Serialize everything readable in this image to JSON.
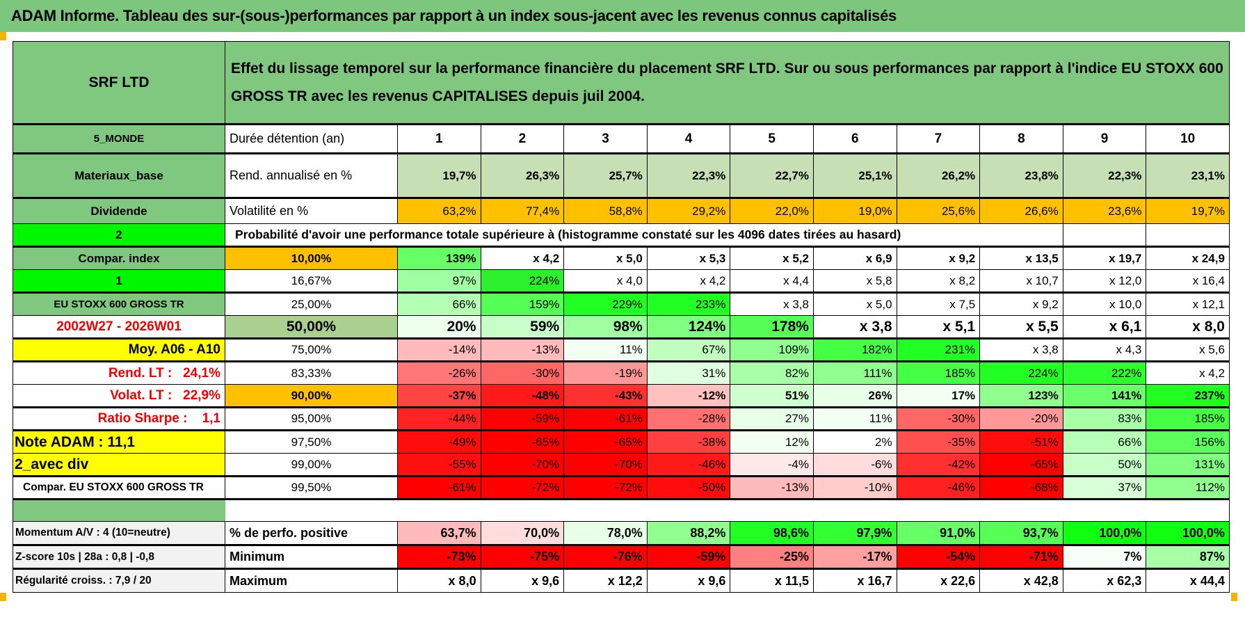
{
  "title": "ADAM Informe. Tableau des sur-(sous-)performances par rapport à un index sous-jacent avec les revenus connus capitalisés",
  "header": {
    "col_a": "SRF LTD",
    "description": "Effet du lissage temporel sur la performance financière du placement SRF LTD. Sur ou sous performances par rapport à l'indice EU STOXX 600 GROSS TR avec les revenus CAPITALISES depuis juil 2004."
  },
  "colors": {
    "header_green": "#80C880",
    "bright_green": "#00F700",
    "highlight_yellow": "#FFFF00",
    "orange": "#FFC000",
    "return_green": "#C6DFB4",
    "label_red": "#F00000"
  },
  "hold_row": {
    "col_a": "5_MONDE",
    "label": "Durée détention (an)",
    "years": [
      "1",
      "2",
      "3",
      "4",
      "5",
      "6",
      "7",
      "8",
      "9",
      "10"
    ]
  },
  "return_row": {
    "col_a": "Materiaux_base",
    "label": "Rend. annualisé en %",
    "bg": "#C6DFB4",
    "values": [
      "19,7%",
      "26,3%",
      "25,7%",
      "22,3%",
      "22,7%",
      "25,1%",
      "26,2%",
      "23,8%",
      "22,3%",
      "23,1%"
    ]
  },
  "vol_row": {
    "col_a": "Dividende",
    "label": "Volatilité en %",
    "bg": "#FFC000",
    "values": [
      "63,2%",
      "77,4%",
      "58,8%",
      "29,2%",
      "22,0%",
      "19,0%",
      "25,6%",
      "26,6%",
      "23,6%",
      "19,7%"
    ]
  },
  "prob_row": {
    "col_a": "2",
    "label": "Probabilité d'avoir une performance totale supérieure à (histogramme constaté sur les 4096 dates tirées au hasard)"
  },
  "percentile_rows": [
    {
      "col_a": "Compar. index",
      "threshold": "10,00%",
      "threshold_bg": "#FFC000",
      "cells": [
        [
          "139%",
          "#66FF66"
        ],
        [
          "x 4,2",
          "#FFFFFF"
        ],
        [
          "x 5,0",
          "#FFFFFF"
        ],
        [
          "x 5,3",
          "#FFFFFF"
        ],
        [
          "x 5,2",
          "#FFFFFF"
        ],
        [
          "x 6,9",
          "#FFFFFF"
        ],
        [
          "x 9,2",
          "#FFFFFF"
        ],
        [
          "x 13,5",
          "#FFFFFF"
        ],
        [
          "x 19,7",
          "#FFFFFF"
        ],
        [
          "x 24,9",
          "#FFFFFF"
        ]
      ]
    },
    {
      "col_a": "1",
      "threshold": "16,67%",
      "threshold_bg": "#FFFFFF",
      "cells": [
        [
          "97%",
          "#A0FFA0"
        ],
        [
          "224%",
          "#2CF02C"
        ],
        [
          "x 4,0",
          "#FFFFFF"
        ],
        [
          "x 4,2",
          "#FFFFFF"
        ],
        [
          "x 4,4",
          "#FFFFFF"
        ],
        [
          "x 5,8",
          "#FFFFFF"
        ],
        [
          "x 8,2",
          "#FFFFFF"
        ],
        [
          "x 10,7",
          "#FFFFFF"
        ],
        [
          "x 12,0",
          "#FFFFFF"
        ],
        [
          "x 16,4",
          "#FFFFFF"
        ]
      ]
    },
    {
      "col_a": "EU STOXX 600 GROSS TR",
      "threshold": "25,00%",
      "threshold_bg": "#FFFFFF",
      "cells": [
        [
          "66%",
          "#B4FFB4"
        ],
        [
          "159%",
          "#55FF55"
        ],
        [
          "229%",
          "#22FF22"
        ],
        [
          "233%",
          "#22FF22"
        ],
        [
          "x 3,8",
          "#FFFFFF"
        ],
        [
          "x 5,0",
          "#FFFFFF"
        ],
        [
          "x 7,5",
          "#FFFFFF"
        ],
        [
          "x 9,2",
          "#FFFFFF"
        ],
        [
          "x 10,0",
          "#FFFFFF"
        ],
        [
          "x 12,1",
          "#FFFFFF"
        ]
      ]
    },
    {
      "col_a": "2002W27 - 2026W01",
      "threshold": "50,00%",
      "threshold_bg": "#A9D08E",
      "cells": [
        [
          "20%",
          "#EEFFEE"
        ],
        [
          "59%",
          "#C8FFC8"
        ],
        [
          "98%",
          "#A0FFA0"
        ],
        [
          "124%",
          "#80FF80"
        ],
        [
          "178%",
          "#55FF55"
        ],
        [
          "x 3,8",
          "#FFFFFF"
        ],
        [
          "x 5,1",
          "#FFFFFF"
        ],
        [
          "x 5,5",
          "#FFFFFF"
        ],
        [
          "x 6,1",
          "#FFFFFF"
        ],
        [
          "x 8,0",
          "#FFFFFF"
        ]
      ]
    },
    {
      "col_a": "Moy. A06 - A10",
      "threshold": "75,00%",
      "threshold_bg": "#FFFFFF",
      "cells": [
        [
          "-14%",
          "#FFBBBB"
        ],
        [
          "-13%",
          "#FFBBBB"
        ],
        [
          "11%",
          "#F2FFF2"
        ],
        [
          "67%",
          "#C0FFC0"
        ],
        [
          "109%",
          "#90FF90"
        ],
        [
          "182%",
          "#44FF44"
        ],
        [
          "231%",
          "#22FF22"
        ],
        [
          "x 3,8",
          "#FFFFFF"
        ],
        [
          "x 4,3",
          "#FFFFFF"
        ],
        [
          "x 5,6",
          "#FFFFFF"
        ]
      ]
    },
    {
      "col_a": "Rend. LT :   24,1%",
      "threshold": "83,33%",
      "threshold_bg": "#FFFFFF",
      "cells": [
        [
          "-26%",
          "#FF7777"
        ],
        [
          "-30%",
          "#FF6666"
        ],
        [
          "-19%",
          "#FF9999"
        ],
        [
          "31%",
          "#E0FFE0"
        ],
        [
          "82%",
          "#A8FFA8"
        ],
        [
          "111%",
          "#90FF90"
        ],
        [
          "185%",
          "#44FF44"
        ],
        [
          "224%",
          "#22FF22"
        ],
        [
          "222%",
          "#2EFF2E"
        ],
        [
          "x 4,2",
          "#FFFFFF"
        ]
      ]
    },
    {
      "col_a": "Volat. LT :   22,9%",
      "threshold": "90,00%",
      "threshold_bg": "#FFC000",
      "cells": [
        [
          "-37%",
          "#FF4444"
        ],
        [
          "-48%",
          "#FF1A1A"
        ],
        [
          "-43%",
          "#FF3030"
        ],
        [
          "-12%",
          "#FFC0C0"
        ],
        [
          "51%",
          "#D0FFD0"
        ],
        [
          "26%",
          "#E8FFE8"
        ],
        [
          "17%",
          "#F2FFF2"
        ],
        [
          "123%",
          "#90FF90"
        ],
        [
          "141%",
          "#6CFF6C"
        ],
        [
          "237%",
          "#22FF22"
        ]
      ]
    },
    {
      "col_a": "Ratio Sharpe :    1,1",
      "threshold": "95,00%",
      "threshold_bg": "#FFFFFF",
      "cells": [
        [
          "-44%",
          "#FF2222"
        ],
        [
          "-59%",
          "#FF0000"
        ],
        [
          "-61%",
          "#FF0000"
        ],
        [
          "-28%",
          "#FF7070"
        ],
        [
          "27%",
          "#E8FFE8"
        ],
        [
          "11%",
          "#F4FFF4"
        ],
        [
          "-30%",
          "#FF6666"
        ],
        [
          "-20%",
          "#FF9999"
        ],
        [
          "83%",
          "#A8FFA8"
        ],
        [
          "185%",
          "#44FF44"
        ]
      ]
    },
    {
      "col_a": "Note ADAM : 11,1",
      "threshold": "97,50%",
      "threshold_bg": "#FFFFFF",
      "cells": [
        [
          "-49%",
          "#FF0D0D"
        ],
        [
          "-65%",
          "#FF0000"
        ],
        [
          "-65%",
          "#FF0000"
        ],
        [
          "-38%",
          "#FF4040"
        ],
        [
          "12%",
          "#F4FFF4"
        ],
        [
          "2%",
          "#FFFFFF"
        ],
        [
          "-35%",
          "#FF5050"
        ],
        [
          "-51%",
          "#FF0D0D"
        ],
        [
          "66%",
          "#B8FFB8"
        ],
        [
          "156%",
          "#5CFF5C"
        ]
      ]
    },
    {
      "col_a": "2_avec div",
      "threshold": "99,00%",
      "threshold_bg": "#FFFFFF",
      "cells": [
        [
          "-55%",
          "#FF1010"
        ],
        [
          "-70%",
          "#FF0000"
        ],
        [
          "-70%",
          "#FF0000"
        ],
        [
          "-46%",
          "#FF1A1A"
        ],
        [
          "-4%",
          "#FFE8E8"
        ],
        [
          "-6%",
          "#FFDDDD"
        ],
        [
          "-42%",
          "#FF3030"
        ],
        [
          "-65%",
          "#FF0000"
        ],
        [
          "50%",
          "#C8FFC8"
        ],
        [
          "131%",
          "#80FF80"
        ]
      ]
    },
    {
      "col_a": "Compar. EU STOXX 600 GROSS TR",
      "threshold": "99,50%",
      "threshold_bg": "#FFFFFF",
      "cells": [
        [
          "-61%",
          "#FF0000"
        ],
        [
          "-72%",
          "#FF0000"
        ],
        [
          "-72%",
          "#FF0000"
        ],
        [
          "-50%",
          "#FF0D0D"
        ],
        [
          "-13%",
          "#FFBBBB"
        ],
        [
          "-10%",
          "#FFCCCC"
        ],
        [
          "-46%",
          "#FF2020"
        ],
        [
          "-68%",
          "#FF0000"
        ],
        [
          "37%",
          "#D8FFD8"
        ],
        [
          "112%",
          "#90FF90"
        ]
      ]
    }
  ],
  "stats_rows": [
    {
      "col_a": "Momentum A/V : 4 (10=neutre)",
      "label": "% de perfo. positive",
      "cells": [
        [
          "63,7%",
          "#FFBBBB"
        ],
        [
          "70,0%",
          "#FFDDDD"
        ],
        [
          "78,0%",
          "#E8FFE8"
        ],
        [
          "88,2%",
          "#90FF90"
        ],
        [
          "98,6%",
          "#22FF22"
        ],
        [
          "97,9%",
          "#33FF33"
        ],
        [
          "91,0%",
          "#66FF66"
        ],
        [
          "93,7%",
          "#55FF55"
        ],
        [
          "100,0%",
          "#11FF11"
        ],
        [
          "100,0%",
          "#11FF11"
        ]
      ]
    },
    {
      "col_a": "Z-score 10s | 28a : 0,8 | -0,8",
      "label": "Minimum",
      "cells": [
        [
          "-73%",
          "#FF0000"
        ],
        [
          "-75%",
          "#FF0000"
        ],
        [
          "-76%",
          "#FF0000"
        ],
        [
          "-59%",
          "#FF0000"
        ],
        [
          "-25%",
          "#FF8080"
        ],
        [
          "-17%",
          "#FFA0A0"
        ],
        [
          "-54%",
          "#FF0000"
        ],
        [
          "-71%",
          "#FF0000"
        ],
        [
          "7%",
          "#F8FFF8"
        ],
        [
          "87%",
          "#A8FFA8"
        ]
      ]
    },
    {
      "col_a": "Régularité croiss. : 7,9 / 20",
      "label": "Maximum",
      "cells": [
        [
          "x 8,0",
          "#FFFFFF"
        ],
        [
          "x 9,6",
          "#FFFFFF"
        ],
        [
          "x 12,2",
          "#FFFFFF"
        ],
        [
          "x 9,6",
          "#FFFFFF"
        ],
        [
          "x 11,5",
          "#FFFFFF"
        ],
        [
          "x 16,7",
          "#FFFFFF"
        ],
        [
          "x 22,6",
          "#FFFFFF"
        ],
        [
          "x 42,8",
          "#FFFFFF"
        ],
        [
          "x 62,3",
          "#FFFFFF"
        ],
        [
          "x 44,4",
          "#FFFFFF"
        ]
      ]
    }
  ]
}
